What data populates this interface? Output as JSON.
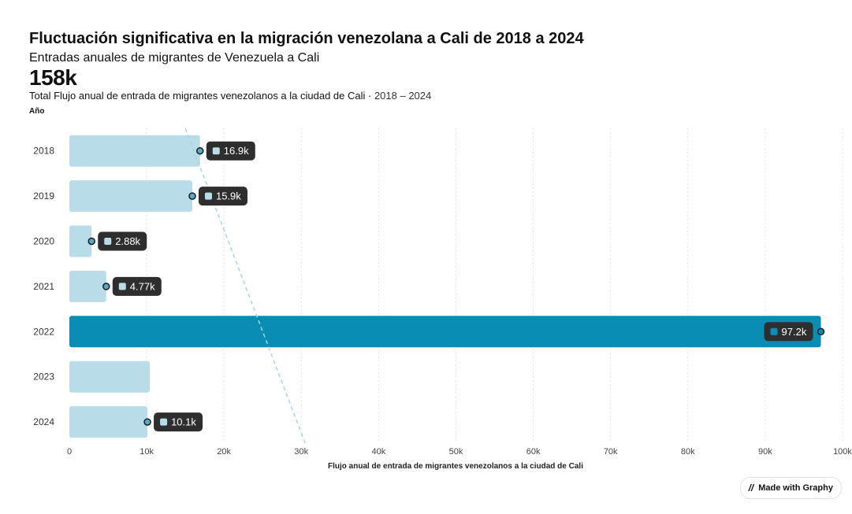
{
  "header": {
    "title": "Fluctuación significativa en la migración venezolana a Cali de 2018 a 2024",
    "subtitle": "Entradas anuales de migrantes de Venezuela a Cali",
    "total": "158k",
    "description": "Total Flujo anual de entrada de migrantes venezolanos a la ciudad de Cali",
    "range": "2018 – 2024"
  },
  "badge": {
    "label": "Made with Graphy",
    "icon": "graphy-logo-icon"
  },
  "chart_data": {
    "type": "bar",
    "orientation": "horizontal",
    "ylabel": "Año",
    "xlabel": "Flujo anual de entrada  de migrantes venezolanos a la ciudad de Cali",
    "categories": [
      "2018",
      "2019",
      "2020",
      "2021",
      "2022",
      "2023",
      "2024"
    ],
    "values": [
      16900,
      15900,
      2880,
      4770,
      97200,
      10400,
      10100
    ],
    "data_labels": [
      "16.9k",
      "15.9k",
      "2.88k",
      "4.77k",
      "97.2k",
      "",
      "10.1k"
    ],
    "highlight": "2022",
    "xlim": [
      0,
      100000
    ],
    "xticks": [
      0,
      10000,
      20000,
      30000,
      40000,
      50000,
      60000,
      70000,
      80000,
      90000,
      100000
    ],
    "xtick_labels": [
      "0",
      "10k",
      "20k",
      "30k",
      "40k",
      "50k",
      "60k",
      "70k",
      "80k",
      "90k",
      "100k"
    ],
    "trendline": {
      "x_start": 15000,
      "x_end": 30500,
      "style": "dashed"
    },
    "grid": true,
    "colors": {
      "bar": "#b8dde9",
      "highlight": "#0a8db4",
      "label_bg": "#2e2e2e",
      "label_text": "#ffffff",
      "trend": "#a9d4e4",
      "grid": "#e2e2e2"
    }
  }
}
